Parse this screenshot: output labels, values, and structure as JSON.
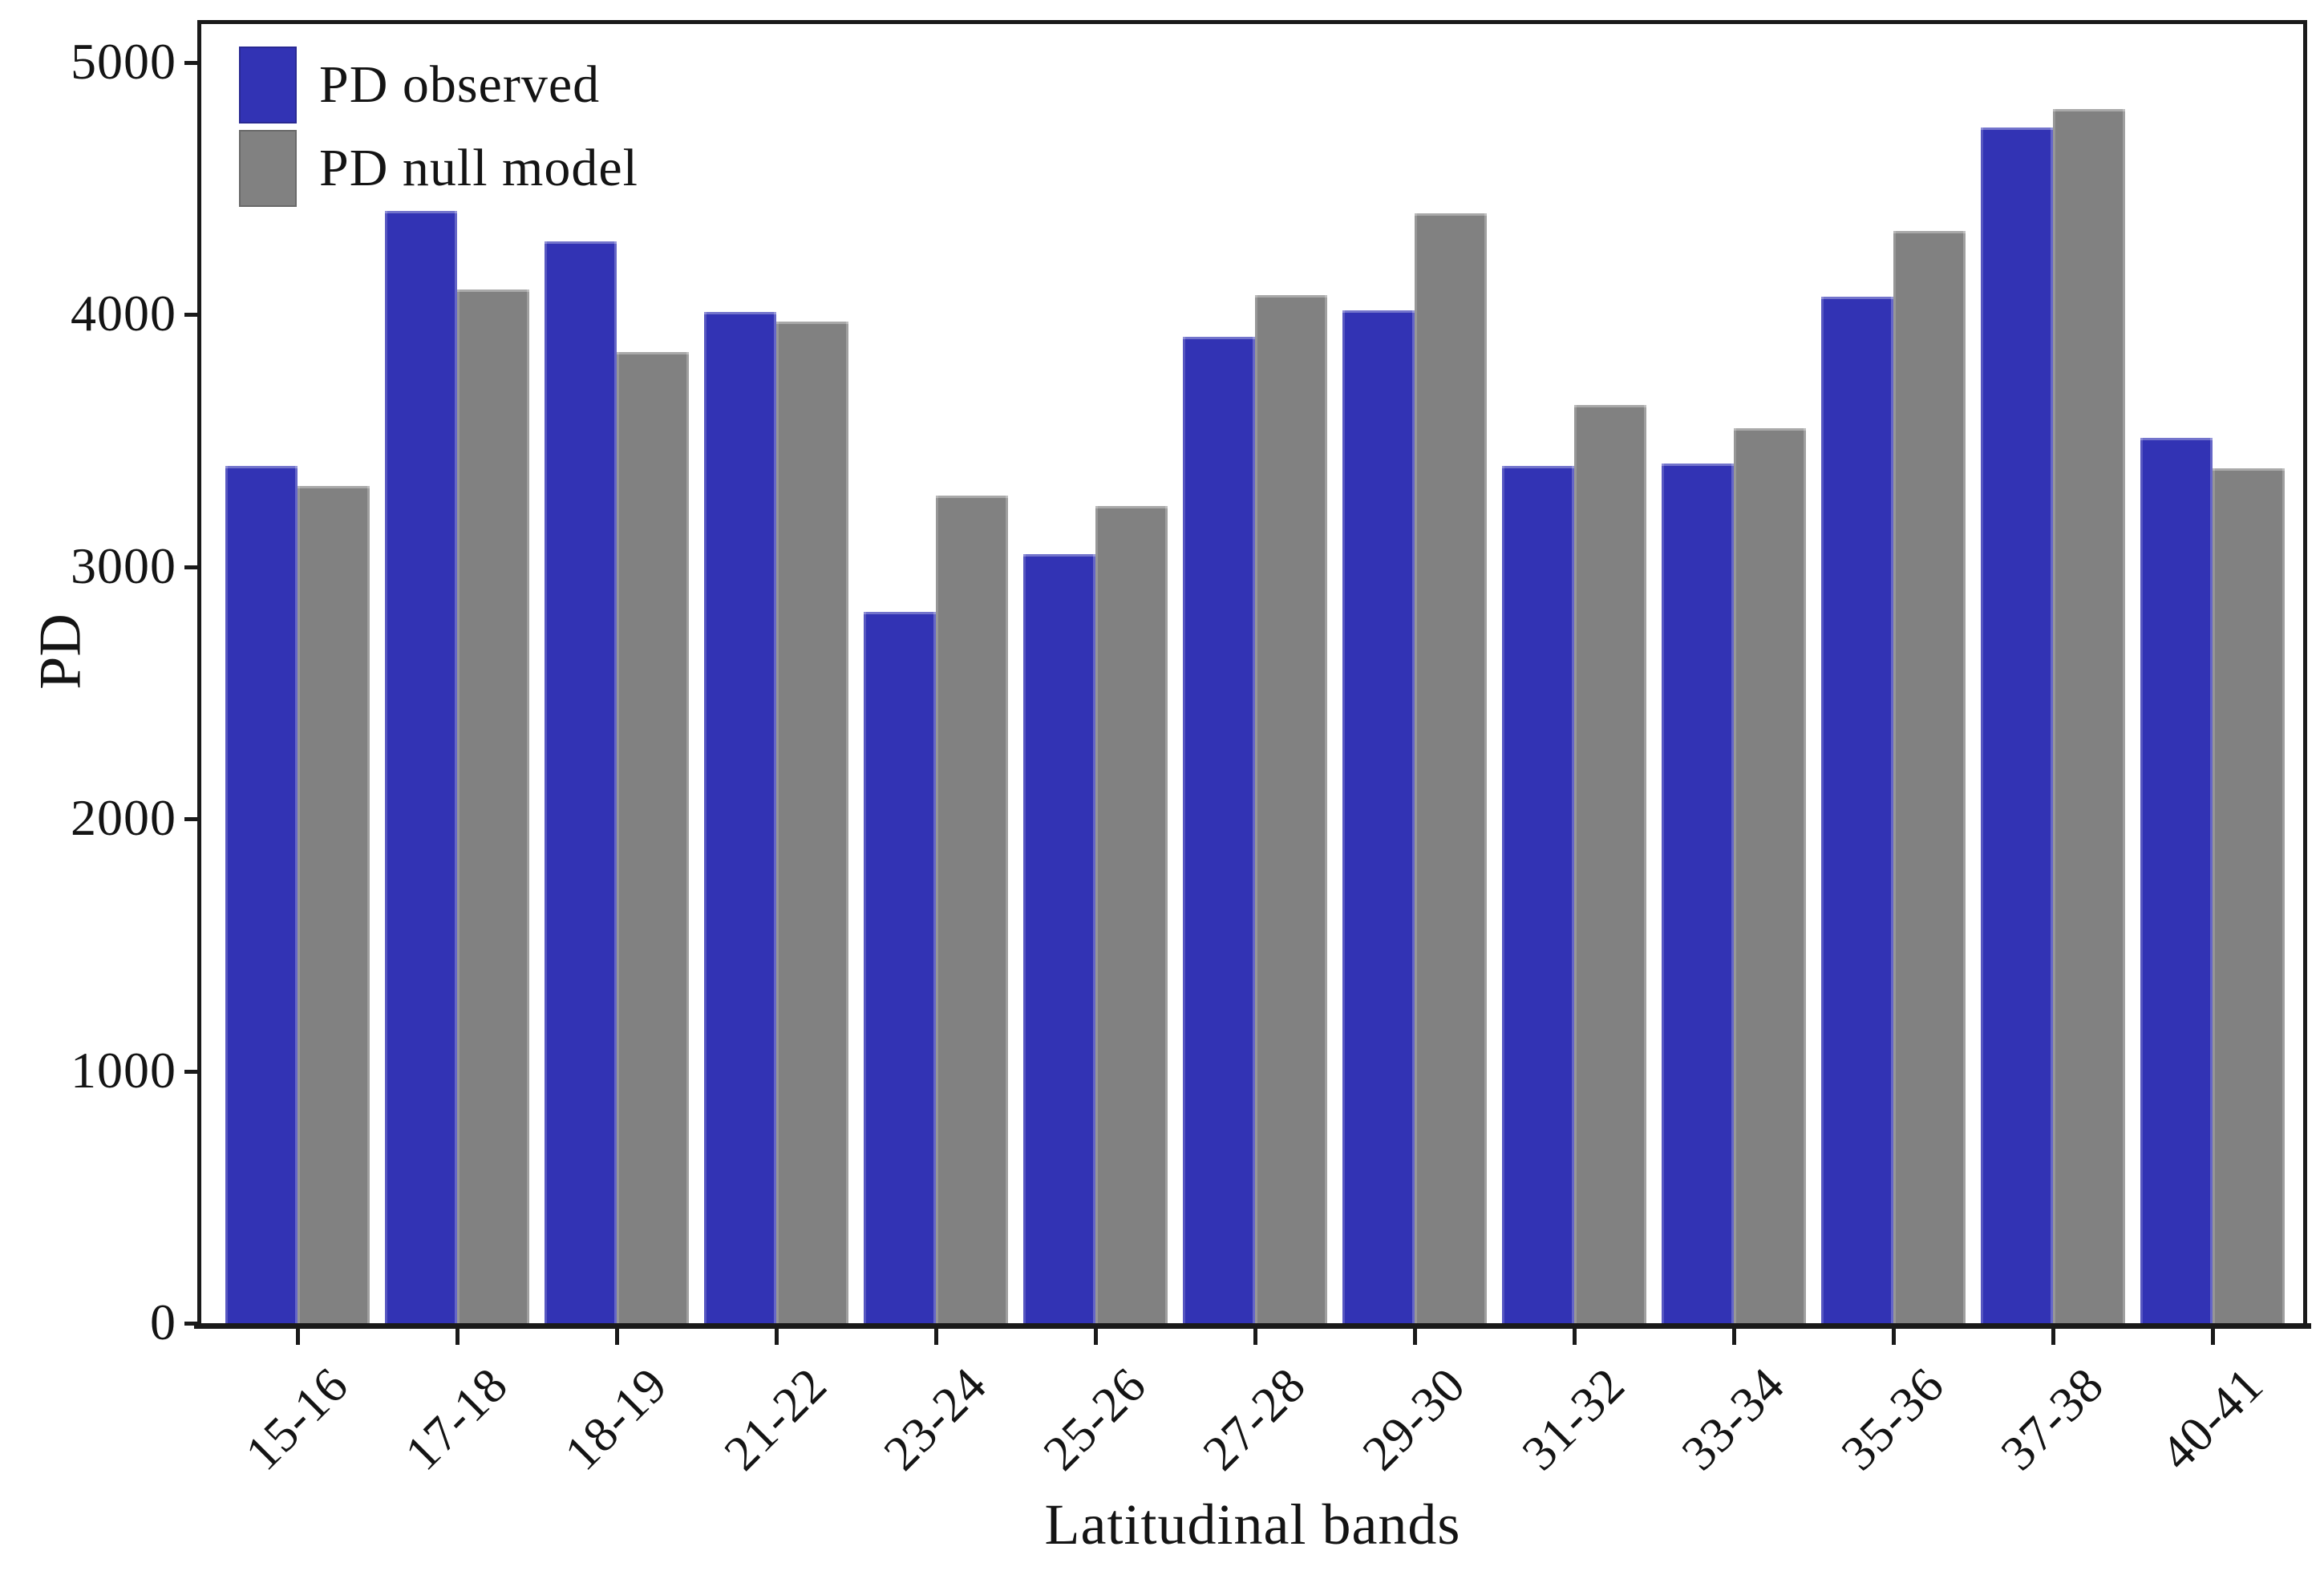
{
  "figure": {
    "y_axis_title": "PD",
    "x_axis_title": "Latitudinal bands"
  },
  "colors": {
    "observed": "#3233B4",
    "null_model": "#818181",
    "axis": "#1a1a1a"
  },
  "legend": {
    "observed_label": "PD observed",
    "null_model_label": "PD null model"
  },
  "chart_data": {
    "type": "bar",
    "title": "",
    "xlabel": "Latitudinal bands",
    "ylabel": "PD",
    "categories": [
      "15-16",
      "17-18",
      "18-19",
      "21-22",
      "23-24",
      "25-26",
      "27-28",
      "29-30",
      "31-32",
      "33-34",
      "35-36",
      "37-38",
      "40-41"
    ],
    "series": [
      {
        "name": "PD observed",
        "color": "#3233B4",
        "values": [
          3400,
          4410,
          4290,
          4010,
          2820,
          3050,
          3910,
          4015,
          3400,
          3410,
          4070,
          4740,
          3510
        ]
      },
      {
        "name": "PD null model",
        "color": "#818181",
        "values": [
          3320,
          4100,
          3850,
          3970,
          3280,
          3240,
          4075,
          4400,
          3640,
          3550,
          4330,
          4815,
          3390
        ]
      }
    ],
    "ylim": [
      0,
      5000
    ],
    "y_ticks": [
      0,
      1000,
      2000,
      3000,
      4000,
      5000
    ],
    "y_tick_labels": [
      "0",
      "1000",
      "2000",
      "3000",
      "4000",
      "5000"
    ],
    "grid": false,
    "legend_position": "top-left-inside",
    "bar_orientation": "vertical"
  }
}
